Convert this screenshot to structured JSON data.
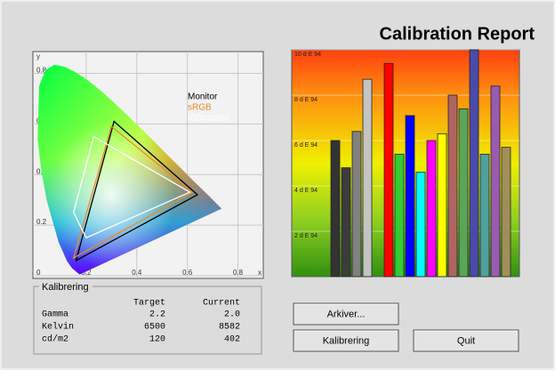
{
  "title": "Calibration Report",
  "chart_data": [
    {
      "type": "gamut",
      "x_label": "x",
      "y_label": "y",
      "xlim": [
        0,
        0.9
      ],
      "ylim": [
        0,
        0.9
      ],
      "xticks": [
        0.2,
        0.4,
        0.6,
        0.8
      ],
      "yticks": [
        0,
        0.2,
        0.4,
        0.6,
        0.8
      ],
      "grid": true,
      "series": [
        {
          "name": "Monitor",
          "color": "#000000",
          "x": [
            0.31,
            0.64,
            0.16
          ],
          "y": [
            0.61,
            0.32,
            0.06
          ]
        },
        {
          "name": "sRGB",
          "color": "#f08a24",
          "x": [
            0.3,
            0.62,
            0.15
          ],
          "y": [
            0.59,
            0.33,
            0.07
          ]
        },
        {
          "name": "ISOcoated",
          "color": "#ffffff",
          "x": [
            0.23,
            0.61,
            0.2,
            0.15
          ],
          "y": [
            0.55,
            0.33,
            0.15,
            0.25
          ]
        }
      ]
    },
    {
      "type": "bar",
      "ylim": [
        0,
        10
      ],
      "yticks": [
        {
          "value": 2,
          "label": "2 d E 94"
        },
        {
          "value": 4,
          "label": "4 d E 94"
        },
        {
          "value": 6,
          "label": "6 d E 94"
        },
        {
          "value": 8,
          "label": "8 d E 94"
        },
        {
          "value": 10,
          "label": "10 d E 94"
        }
      ],
      "grid": true,
      "categories": [
        null,
        null,
        null,
        null,
        null,
        null,
        null,
        null,
        null,
        null,
        null,
        null,
        null,
        null,
        null,
        null
      ],
      "values": [
        6.0,
        4.8,
        6.4,
        8.7,
        9.4,
        5.4,
        7.1,
        4.6,
        6.0,
        6.3,
        8.0,
        7.4,
        10.0,
        5.4,
        8.4,
        5.7
      ],
      "colors": [
        "#333333",
        "#3c3c3c",
        "#808080",
        "#c4c4c4",
        "#ff0000",
        "#33cc33",
        "#0000ff",
        "#00ffff",
        "#ff00ff",
        "#ffff00",
        "#b06464",
        "#5aa55a",
        "#4a4aaa",
        "#50a0a0",
        "#9a5ab0",
        "#a08f5a"
      ]
    }
  ],
  "calibration_panel": {
    "title": "Kalibrering",
    "columns": [
      "Target",
      "Current"
    ],
    "rows": [
      [
        "Gamma",
        "2.2",
        "2.0"
      ],
      [
        "Kelvin",
        "6500",
        "8582"
      ],
      [
        "cd/m2",
        "120",
        "402"
      ]
    ]
  },
  "buttons": [
    "Arkiver...",
    "Kalibrering",
    "Quit"
  ]
}
